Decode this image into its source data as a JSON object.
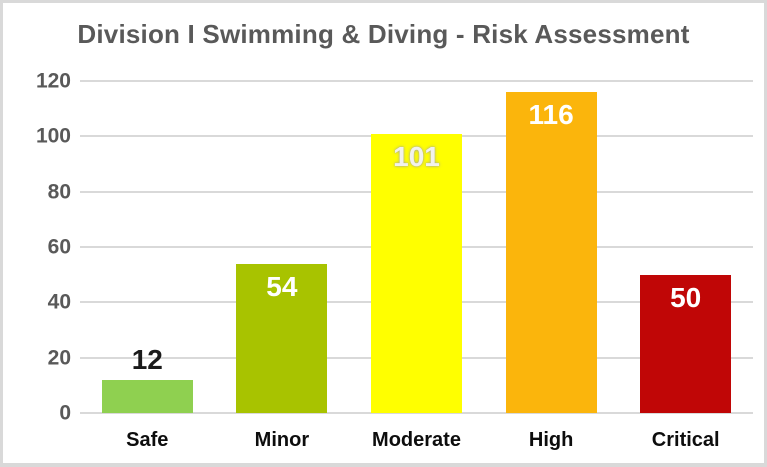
{
  "chart_data": {
    "type": "bar",
    "title": "Division I Swimming & Diving - Risk Assessment",
    "categories": [
      "Safe",
      "Minor",
      "Moderate",
      "High",
      "Critical"
    ],
    "values": [
      12,
      54,
      101,
      116,
      50
    ],
    "bar_colors": [
      "#8fd050",
      "#a8c300",
      "#ffff00",
      "#fbb50c",
      "#c00606"
    ],
    "value_label_colors": [
      "#1a1a1a",
      "#ffffff",
      "#f2f2ec",
      "#ffffff",
      "#ffffff"
    ],
    "value_label_inside": [
      false,
      true,
      true,
      true,
      true
    ],
    "value_label_shadow": [
      false,
      false,
      true,
      false,
      false
    ],
    "xlabel": "",
    "ylabel": "",
    "ylim": [
      0,
      120
    ],
    "yticks": [
      0,
      20,
      40,
      60,
      80,
      100,
      120
    ],
    "grid": true,
    "legend": false,
    "colors": {
      "title": "#595959",
      "tick_label": "#595959",
      "gridline": "#d9d9d9",
      "category_label": "#0d0d0d",
      "background": "#ffffff",
      "frame_border": "#d9d9d9"
    }
  }
}
